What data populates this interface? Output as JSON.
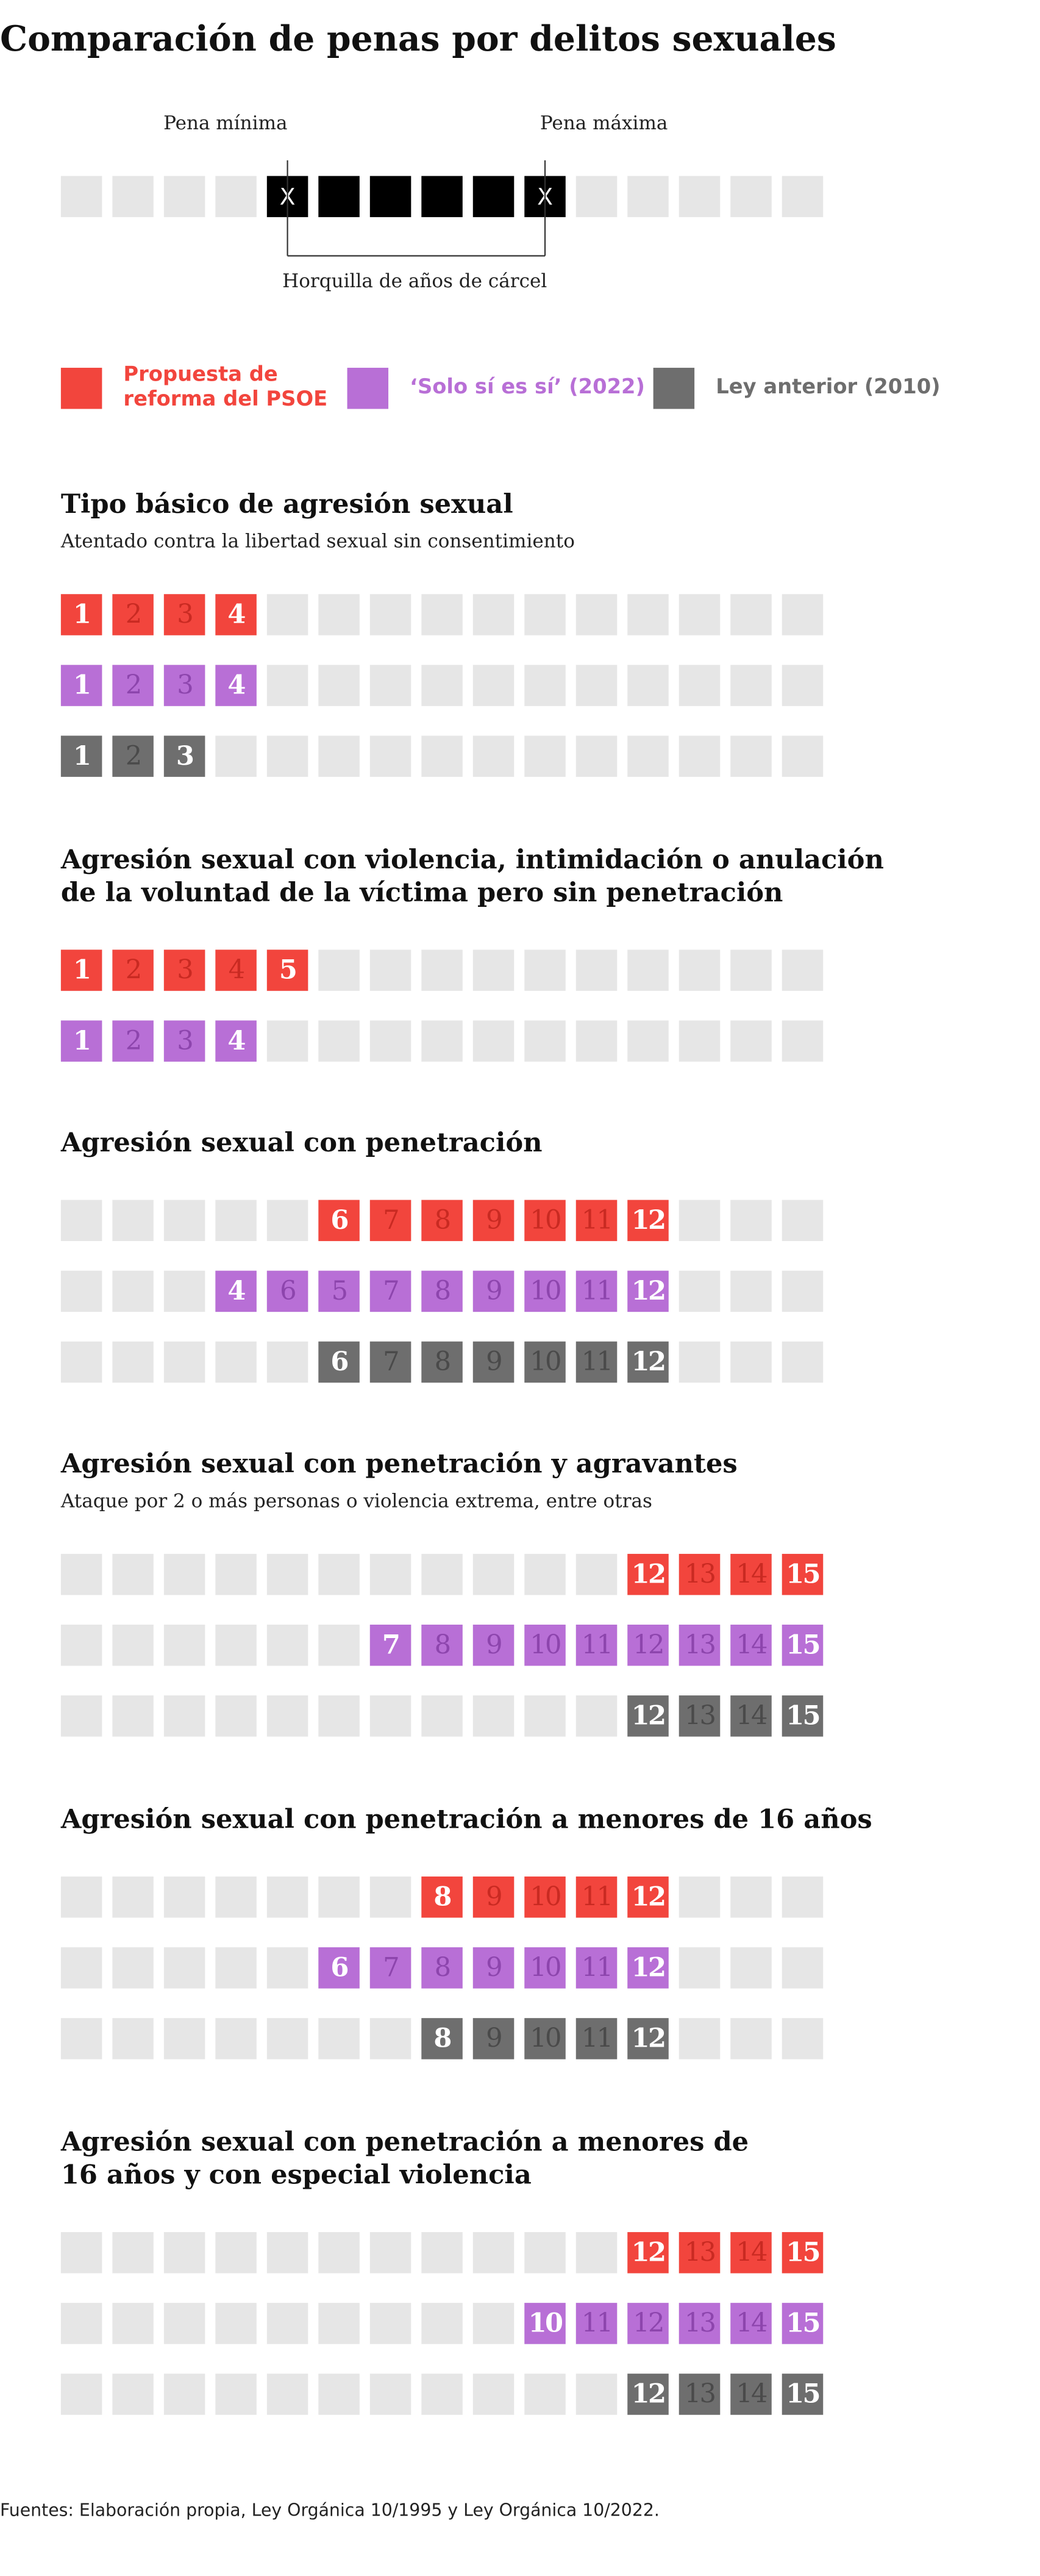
{
  "chart_data": {
    "type": "range-squares",
    "title": "Comparación de penas por delitos sexuales",
    "xlim": [
      1,
      15
    ],
    "explainer": {
      "min_label": "Pena mínima",
      "max_label": "Pena máxima",
      "range_label": "Horquilla de años de cárcel",
      "marker": "X"
    },
    "series": [
      {
        "name": [
          "Propuesta de",
          "reforma del PSOE"
        ],
        "color": "#f2453d"
      },
      {
        "name": [
          "‘Solo sí es sí’ (2022)"
        ],
        "color": "#b86fd6"
      },
      {
        "name": [
          "Ley anterior (2010)"
        ],
        "color": "#6e6e6e"
      }
    ],
    "sections": [
      {
        "title": [
          "Tipo básico de agresión sexual"
        ],
        "subtitle": "Atentado contra la libertad sexual sin consentimiento",
        "rows": [
          {
            "series": 0,
            "years": [
              1,
              2,
              3,
              4
            ]
          },
          {
            "series": 1,
            "years": [
              1,
              2,
              3,
              4
            ]
          },
          {
            "series": 2,
            "years": [
              1,
              2,
              3
            ]
          }
        ]
      },
      {
        "title": [
          "Agresión sexual con violencia, intimidación o anulación",
          "de la voluntad de la víctima pero sin penetración"
        ],
        "rows": [
          {
            "series": 0,
            "years": [
              1,
              2,
              3,
              4,
              5
            ]
          },
          {
            "series": 1,
            "years": [
              1,
              2,
              3,
              4
            ]
          }
        ]
      },
      {
        "title": [
          "Agresión sexual con penetración"
        ],
        "rows": [
          {
            "series": 0,
            "years": [
              6,
              7,
              8,
              9,
              10,
              11,
              12
            ]
          },
          {
            "series": 1,
            "years": [
              4,
              6,
              5,
              7,
              8,
              9,
              10,
              11,
              12
            ]
          },
          {
            "series": 2,
            "years": [
              6,
              7,
              8,
              9,
              10,
              11,
              12
            ]
          }
        ]
      },
      {
        "title": [
          "Agresión sexual con penetración y agravantes"
        ],
        "subtitle": "Ataque por 2 o más personas o violencia extrema, entre otras",
        "rows": [
          {
            "series": 0,
            "years": [
              12,
              13,
              14,
              15
            ]
          },
          {
            "series": 1,
            "years": [
              7,
              8,
              9,
              10,
              11,
              12,
              13,
              14,
              15
            ]
          },
          {
            "series": 2,
            "years": [
              12,
              13,
              14,
              15
            ]
          }
        ]
      },
      {
        "title": [
          "Agresión sexual con penetración a menores de 16 años"
        ],
        "rows": [
          {
            "series": 0,
            "years": [
              8,
              9,
              10,
              11,
              12
            ]
          },
          {
            "series": 1,
            "years": [
              6,
              7,
              8,
              9,
              10,
              11,
              12
            ]
          },
          {
            "series": 2,
            "years": [
              8,
              9,
              10,
              11,
              12
            ]
          }
        ]
      },
      {
        "title": [
          "Agresión sexual con penetración a menores de",
          "16 años y con especial violencia"
        ],
        "rows": [
          {
            "series": 0,
            "years": [
              12,
              13,
              14,
              15
            ]
          },
          {
            "series": 1,
            "years": [
              10,
              11,
              12,
              13,
              14,
              15
            ]
          },
          {
            "series": 2,
            "years": [
              12,
              13,
              14,
              15
            ]
          }
        ]
      }
    ],
    "source": "Fuentes: Elaboración propia, Ley Orgánica 10/1995 y Ley Orgánica 10/2022."
  }
}
